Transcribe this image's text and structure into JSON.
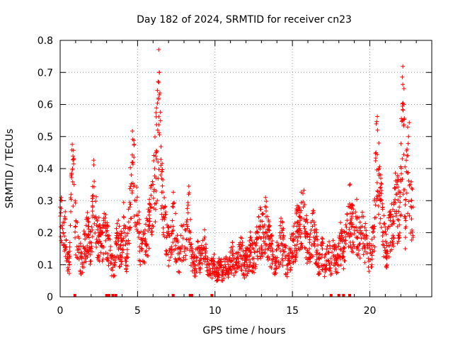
{
  "chart_data": {
    "type": "scatter",
    "title": "Day 182 of 2024, SRMTID for receiver cn23",
    "xlabel": "GPS time / hours",
    "ylabel": "SRMTID / TECUs",
    "xlim": [
      0,
      24
    ],
    "ylim": [
      0,
      0.8
    ],
    "x_ticks": [
      0,
      5,
      10,
      15,
      20
    ],
    "y_ticks": [
      0,
      0.1,
      0.2,
      0.3,
      0.4,
      0.5,
      0.6,
      0.7,
      0.8
    ],
    "x_tick_labels": [
      "0",
      "5",
      "10",
      "15",
      "20"
    ],
    "y_tick_labels": [
      "0",
      "0.1",
      "0.2",
      "0.3",
      "0.4",
      "0.5",
      "0.6",
      "0.7",
      "0.8"
    ],
    "grid": true,
    "marker": "+",
    "series": [
      {
        "name": "SRMTID",
        "color": "#ff0000",
        "points_description": "dense scatter of per-epoch values, roughly 0.05–0.30 baseline",
        "anchor_points": [
          [
            0.0,
            0.28
          ],
          [
            0.1,
            0.3
          ],
          [
            0.2,
            0.2
          ],
          [
            0.3,
            0.25
          ],
          [
            0.5,
            0.12
          ],
          [
            0.6,
            0.1
          ],
          [
            0.7,
            0.32
          ],
          [
            0.8,
            0.4
          ],
          [
            0.9,
            0.35
          ],
          [
            1.0,
            0.22
          ],
          [
            1.2,
            0.15
          ],
          [
            1.4,
            0.12
          ],
          [
            1.6,
            0.18
          ],
          [
            1.8,
            0.22
          ],
          [
            2.0,
            0.15
          ],
          [
            2.1,
            0.28
          ],
          [
            2.2,
            0.36
          ],
          [
            2.3,
            0.25
          ],
          [
            2.5,
            0.2
          ],
          [
            2.7,
            0.16
          ],
          [
            2.9,
            0.22
          ],
          [
            3.1,
            0.18
          ],
          [
            3.3,
            0.12
          ],
          [
            3.5,
            0.1
          ],
          [
            3.7,
            0.2
          ],
          [
            3.9,
            0.15
          ],
          [
            4.1,
            0.25
          ],
          [
            4.3,
            0.12
          ],
          [
            4.5,
            0.28
          ],
          [
            4.6,
            0.38
          ],
          [
            4.7,
            0.42
          ],
          [
            4.9,
            0.3
          ],
          [
            5.1,
            0.2
          ],
          [
            5.3,
            0.15
          ],
          [
            5.5,
            0.18
          ],
          [
            5.7,
            0.22
          ],
          [
            5.9,
            0.28
          ],
          [
            6.0,
            0.35
          ],
          [
            6.1,
            0.4
          ],
          [
            6.2,
            0.45
          ],
          [
            6.3,
            0.52
          ],
          [
            6.35,
            0.62
          ],
          [
            6.4,
            0.7
          ],
          [
            6.5,
            0.38
          ],
          [
            6.7,
            0.25
          ],
          [
            6.9,
            0.2
          ],
          [
            7.1,
            0.15
          ],
          [
            7.3,
            0.28
          ],
          [
            7.5,
            0.18
          ],
          [
            7.7,
            0.12
          ],
          [
            7.9,
            0.22
          ],
          [
            8.1,
            0.15
          ],
          [
            8.3,
            0.32
          ],
          [
            8.5,
            0.12
          ],
          [
            8.7,
            0.1
          ],
          [
            8.9,
            0.15
          ],
          [
            9.1,
            0.12
          ],
          [
            9.3,
            0.18
          ],
          [
            9.5,
            0.1
          ],
          [
            9.7,
            0.08
          ],
          [
            9.9,
            0.12
          ],
          [
            10.1,
            0.07
          ],
          [
            10.3,
            0.1
          ],
          [
            10.5,
            0.08
          ],
          [
            10.7,
            0.12
          ],
          [
            10.9,
            0.09
          ],
          [
            11.1,
            0.14
          ],
          [
            11.3,
            0.1
          ],
          [
            11.5,
            0.12
          ],
          [
            11.7,
            0.15
          ],
          [
            11.9,
            0.1
          ],
          [
            12.1,
            0.13
          ],
          [
            12.3,
            0.16
          ],
          [
            12.5,
            0.12
          ],
          [
            12.7,
            0.18
          ],
          [
            12.9,
            0.22
          ],
          [
            13.1,
            0.2
          ],
          [
            13.3,
            0.25
          ],
          [
            13.5,
            0.18
          ],
          [
            13.7,
            0.15
          ],
          [
            13.9,
            0.12
          ],
          [
            14.1,
            0.16
          ],
          [
            14.3,
            0.2
          ],
          [
            14.5,
            0.14
          ],
          [
            14.7,
            0.1
          ],
          [
            14.9,
            0.15
          ],
          [
            15.1,
            0.18
          ],
          [
            15.3,
            0.22
          ],
          [
            15.5,
            0.25
          ],
          [
            15.7,
            0.28
          ],
          [
            15.9,
            0.2
          ],
          [
            16.1,
            0.15
          ],
          [
            16.3,
            0.22
          ],
          [
            16.5,
            0.18
          ],
          [
            16.7,
            0.12
          ],
          [
            16.9,
            0.16
          ],
          [
            17.1,
            0.1
          ],
          [
            17.3,
            0.14
          ],
          [
            17.5,
            0.12
          ],
          [
            17.7,
            0.15
          ],
          [
            17.9,
            0.12
          ],
          [
            18.1,
            0.18
          ],
          [
            18.3,
            0.15
          ],
          [
            18.5,
            0.2
          ],
          [
            18.7,
            0.28
          ],
          [
            18.9,
            0.22
          ],
          [
            19.1,
            0.25
          ],
          [
            19.3,
            0.2
          ],
          [
            19.5,
            0.22
          ],
          [
            19.7,
            0.18
          ],
          [
            19.9,
            0.12
          ],
          [
            20.1,
            0.16
          ],
          [
            20.3,
            0.22
          ],
          [
            20.4,
            0.45
          ],
          [
            20.5,
            0.52
          ],
          [
            20.6,
            0.4
          ],
          [
            20.7,
            0.3
          ],
          [
            20.9,
            0.2
          ],
          [
            21.1,
            0.16
          ],
          [
            21.3,
            0.22
          ],
          [
            21.5,
            0.25
          ],
          [
            21.7,
            0.32
          ],
          [
            21.9,
            0.28
          ],
          [
            22.0,
            0.36
          ],
          [
            22.1,
            0.55
          ],
          [
            22.2,
            0.6
          ],
          [
            22.3,
            0.25
          ],
          [
            22.4,
            0.44
          ],
          [
            22.5,
            0.5
          ],
          [
            22.6,
            0.35
          ],
          [
            22.7,
            0.3
          ],
          [
            22.8,
            0.28
          ]
        ],
        "zero_markers_x": [
          0.95,
          3.0,
          3.15,
          3.4,
          3.6,
          7.3,
          8.4,
          8.5,
          9.8,
          17.5,
          18.0,
          18.3,
          18.7
        ]
      }
    ]
  }
}
